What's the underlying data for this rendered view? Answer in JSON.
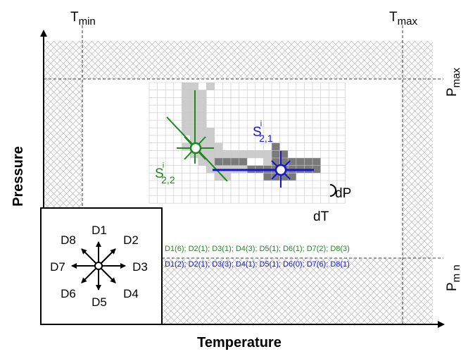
{
  "labels": {
    "t_min": "T",
    "t_min_sub": "min",
    "t_max": "T",
    "t_max_sub": "max",
    "p_max": "P",
    "p_max_sub": "max",
    "p_min": "P",
    "p_min_sub": "m n",
    "x_axis": "Temperature",
    "y_axis": "Pressure",
    "dp": "dP",
    "dt": "dT"
  },
  "states": {
    "s22": {
      "letter": "S",
      "sup": "i",
      "sub": "2,2",
      "color": "#1a8a1a"
    },
    "s21": {
      "letter": "S",
      "sup": "i",
      "sub": "2,1",
      "color": "#1515d0"
    }
  },
  "directions": [
    "D1",
    "D2",
    "D3",
    "D4",
    "D5",
    "D6",
    "D7",
    "D8"
  ],
  "direction_counts": [
    {
      "text": "D1(6); D2(1); D3(1); D4(3); D5(1); D6(1); D7(2); D8(3)",
      "color": "#1a8a1a"
    },
    {
      "text": "D1(2); D2(1); D3(3); D4(1); D5(1); D6(0); D7(6); D8(1)",
      "color": "#1515d0"
    }
  ],
  "colors": {
    "hatch": "#b8b8b8",
    "grid": "#c8c8c8",
    "cell_light": "#cccccc",
    "cell_dark": "#7a7a7a"
  }
}
